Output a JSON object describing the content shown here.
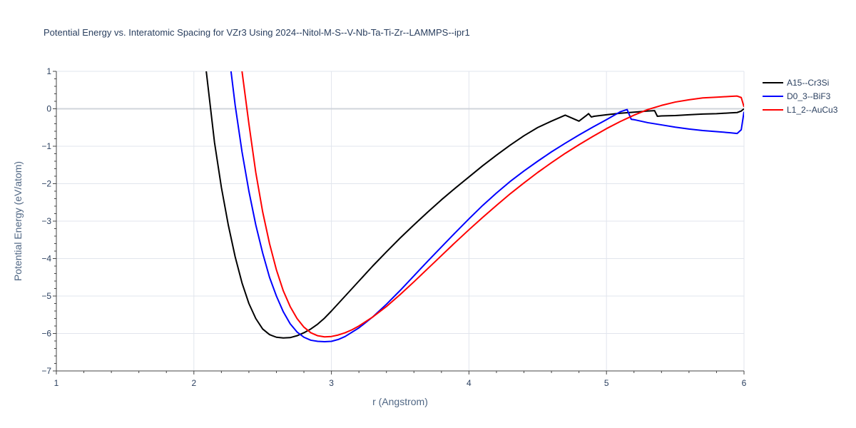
{
  "chart_data": {
    "type": "line",
    "title": "Potential Energy vs. Interatomic Spacing for VZr3 Using 2024--Nitol-M-S--V-Nb-Ta-Ti-Zr--LAMMPS--ipr1",
    "xlabel": "r (Angstrom)",
    "ylabel": "Potential Energy (eV/atom)",
    "xlim": [
      1,
      6
    ],
    "ylim": [
      -7,
      1
    ],
    "xticks": [
      1,
      2,
      3,
      4,
      5,
      6
    ],
    "yticks": [
      1,
      0,
      -1,
      -2,
      -3,
      -4,
      -5,
      -6,
      -7
    ],
    "xtick_labels": [
      "1",
      "2",
      "3",
      "4",
      "5",
      "6"
    ],
    "ytick_labels": [
      "1",
      "0",
      "−1",
      "−2",
      "−3",
      "−4",
      "−5",
      "−6",
      "−7"
    ],
    "grid": true,
    "legend_position": "top-right",
    "series": [
      {
        "name": "A15--Cr3Si",
        "color": "#000000",
        "x": [
          2.09,
          2.15,
          2.2,
          2.25,
          2.3,
          2.35,
          2.4,
          2.45,
          2.5,
          2.55,
          2.6,
          2.65,
          2.7,
          2.75,
          2.8,
          2.85,
          2.9,
          2.95,
          3.0,
          3.1,
          3.2,
          3.3,
          3.4,
          3.5,
          3.6,
          3.7,
          3.8,
          3.9,
          4.0,
          4.1,
          4.2,
          4.3,
          4.4,
          4.5,
          4.6,
          4.7,
          4.8,
          4.85,
          4.87,
          4.89,
          4.91,
          5.0,
          5.1,
          5.2,
          5.3,
          5.35,
          5.37,
          5.4,
          5.5,
          5.6,
          5.7,
          5.8,
          5.9,
          5.95,
          5.98,
          6.0
        ],
        "y": [
          1.0,
          -0.9,
          -2.1,
          -3.1,
          -3.95,
          -4.65,
          -5.2,
          -5.6,
          -5.88,
          -6.03,
          -6.1,
          -6.12,
          -6.11,
          -6.06,
          -5.98,
          -5.88,
          -5.75,
          -5.59,
          -5.4,
          -5.0,
          -4.6,
          -4.2,
          -3.82,
          -3.45,
          -3.1,
          -2.76,
          -2.43,
          -2.12,
          -1.82,
          -1.52,
          -1.24,
          -0.97,
          -0.72,
          -0.5,
          -0.33,
          -0.17,
          -0.33,
          -0.19,
          -0.13,
          -0.22,
          -0.2,
          -0.16,
          -0.12,
          -0.09,
          -0.06,
          -0.05,
          -0.2,
          -0.19,
          -0.18,
          -0.16,
          -0.14,
          -0.13,
          -0.11,
          -0.1,
          -0.06,
          0.0
        ]
      },
      {
        "name": "D0_3--BiF3",
        "color": "#0000ff",
        "x": [
          2.27,
          2.3,
          2.35,
          2.4,
          2.45,
          2.5,
          2.55,
          2.6,
          2.65,
          2.7,
          2.75,
          2.8,
          2.85,
          2.9,
          2.95,
          3.0,
          3.05,
          3.1,
          3.2,
          3.3,
          3.4,
          3.5,
          3.6,
          3.7,
          3.8,
          3.9,
          4.0,
          4.1,
          4.2,
          4.3,
          4.4,
          4.5,
          4.6,
          4.7,
          4.8,
          4.9,
          5.0,
          5.1,
          5.15,
          5.18,
          5.2,
          5.3,
          5.4,
          5.5,
          5.6,
          5.7,
          5.8,
          5.9,
          5.95,
          5.98,
          6.0
        ],
        "y": [
          1.0,
          0.1,
          -1.15,
          -2.2,
          -3.1,
          -3.85,
          -4.5,
          -5.0,
          -5.42,
          -5.74,
          -5.96,
          -6.1,
          -6.18,
          -6.21,
          -6.22,
          -6.21,
          -6.16,
          -6.08,
          -5.85,
          -5.56,
          -5.22,
          -4.85,
          -4.46,
          -4.07,
          -3.69,
          -3.31,
          -2.94,
          -2.58,
          -2.25,
          -1.94,
          -1.66,
          -1.4,
          -1.15,
          -0.92,
          -0.7,
          -0.49,
          -0.29,
          -0.08,
          -0.02,
          -0.28,
          -0.29,
          -0.37,
          -0.43,
          -0.49,
          -0.54,
          -0.58,
          -0.61,
          -0.64,
          -0.66,
          -0.56,
          -0.08
        ]
      },
      {
        "name": "L1_2--AuCu3",
        "color": "#ff0000",
        "x": [
          2.35,
          2.4,
          2.45,
          2.5,
          2.55,
          2.6,
          2.65,
          2.7,
          2.75,
          2.8,
          2.85,
          2.9,
          2.95,
          3.0,
          3.05,
          3.1,
          3.15,
          3.2,
          3.3,
          3.4,
          3.5,
          3.6,
          3.7,
          3.8,
          3.9,
          4.0,
          4.1,
          4.2,
          4.3,
          4.4,
          4.5,
          4.6,
          4.7,
          4.8,
          4.9,
          5.0,
          5.1,
          5.2,
          5.3,
          5.4,
          5.5,
          5.6,
          5.7,
          5.8,
          5.9,
          5.95,
          5.98,
          6.0
        ],
        "y": [
          1.0,
          -0.4,
          -1.7,
          -2.75,
          -3.6,
          -4.3,
          -4.86,
          -5.28,
          -5.6,
          -5.83,
          -5.98,
          -6.06,
          -6.09,
          -6.08,
          -6.04,
          -5.98,
          -5.9,
          -5.8,
          -5.56,
          -5.28,
          -4.96,
          -4.62,
          -4.27,
          -3.92,
          -3.57,
          -3.23,
          -2.9,
          -2.58,
          -2.27,
          -1.98,
          -1.7,
          -1.44,
          -1.19,
          -0.96,
          -0.74,
          -0.53,
          -0.34,
          -0.17,
          -0.02,
          0.09,
          0.18,
          0.24,
          0.29,
          0.31,
          0.33,
          0.34,
          0.3,
          0.05
        ]
      }
    ]
  }
}
